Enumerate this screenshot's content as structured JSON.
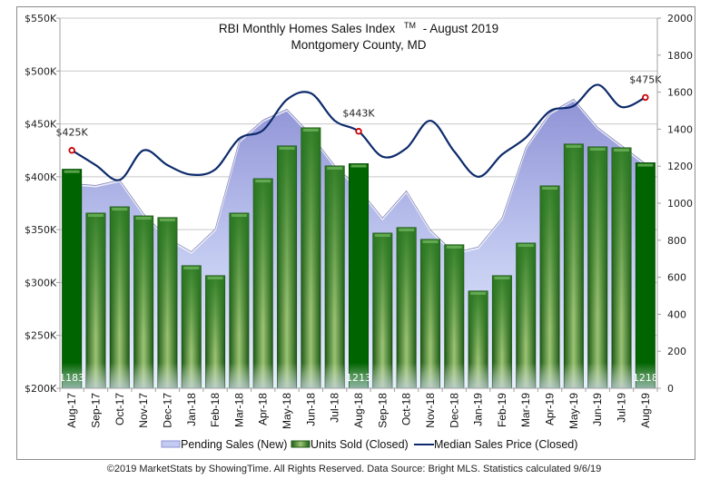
{
  "chart_data": {
    "type": "bar",
    "title": "RBI Monthly Homes Sales Index",
    "title_mark": "TM",
    "title_suffix": "-  August 2019",
    "subtitle": "Montgomery County, MD",
    "categories": [
      "Aug-17",
      "Sep-17",
      "Oct-17",
      "Nov-17",
      "Dec-17",
      "Jan-18",
      "Feb-18",
      "Mar-18",
      "Apr-18",
      "May-18",
      "Jun-18",
      "Jul-18",
      "Aug-18",
      "Sep-18",
      "Oct-18",
      "Nov-18",
      "Dec-18",
      "Jan-19",
      "Feb-19",
      "Mar-19",
      "Apr-19",
      "May-19",
      "Jun-19",
      "Jul-19",
      "Aug-19"
    ],
    "left_axis": {
      "ylim": [
        200,
        550
      ],
      "ticks": [
        "$200K",
        "$250K",
        "$300K",
        "$350K",
        "$400K",
        "$450K",
        "$500K",
        "$550K"
      ],
      "tick_values": [
        200,
        250,
        300,
        350,
        400,
        450,
        500,
        550
      ],
      "unit": "$K"
    },
    "right_axis": {
      "ylim": [
        0,
        2000
      ],
      "ticks": [
        "0",
        "200",
        "400",
        "600",
        "800",
        "1000",
        "1200",
        "1400",
        "1600",
        "1800",
        "2000"
      ],
      "tick_values": [
        0,
        200,
        400,
        600,
        800,
        1000,
        1200,
        1400,
        1600,
        1800,
        2000
      ]
    },
    "grid": true,
    "series": [
      {
        "name": "Pending Sales (New)",
        "type": "area",
        "axis": "right",
        "values": [
          1108,
          1098,
          1127,
          946,
          814,
          740,
          863,
          1338,
          1451,
          1510,
          1373,
          1206,
          1083,
          922,
          1069,
          858,
          735,
          765,
          922,
          1304,
          1490,
          1564,
          1412,
          1314,
          1216
        ]
      },
      {
        "name": "Units Sold (Closed)",
        "type": "bar",
        "axis": "right",
        "values": [
          1183,
          946,
          980,
          931,
          922,
          662,
          608,
          946,
          1132,
          1309,
          1407,
          1201,
          1213,
          838,
          868,
          804,
          775,
          525,
          608,
          784,
          1093,
          1319,
          1304,
          1299,
          1218
        ]
      },
      {
        "name": "Median Sales Price (Closed)",
        "type": "line",
        "axis": "left",
        "values": [
          425,
          411,
          397,
          425,
          411,
          402,
          407,
          436,
          444,
          473,
          479,
          453,
          443,
          419,
          427,
          453,
          424,
          400,
          421,
          437,
          462,
          467,
          487,
          466,
          475
        ]
      }
    ],
    "bar_labels": [
      {
        "index": 0,
        "text": "1183"
      },
      {
        "index": 12,
        "text": "1213"
      },
      {
        "index": 24,
        "text": "1218"
      }
    ],
    "line_labels": [
      {
        "index": 0,
        "text": "$425K"
      },
      {
        "index": 12,
        "text": "$443K"
      },
      {
        "index": 24,
        "text": "$475K"
      }
    ],
    "highlight_indices": [
      0,
      12,
      24
    ],
    "legend_position": "bottom",
    "colors": {
      "area_top": "#8f93d6",
      "area_bottom": "#e4ecfb",
      "bar_dark": "#006400",
      "bar_light": "#a6c97a",
      "bar_mid": "#2e7d22",
      "line": "#0d2a6b",
      "marker": "#cc0000"
    }
  },
  "footer": "©2019 MarketStats by ShowingTime. All Rights Reserved. Data Source: Bright MLS. Statistics calculated 9/6/19"
}
